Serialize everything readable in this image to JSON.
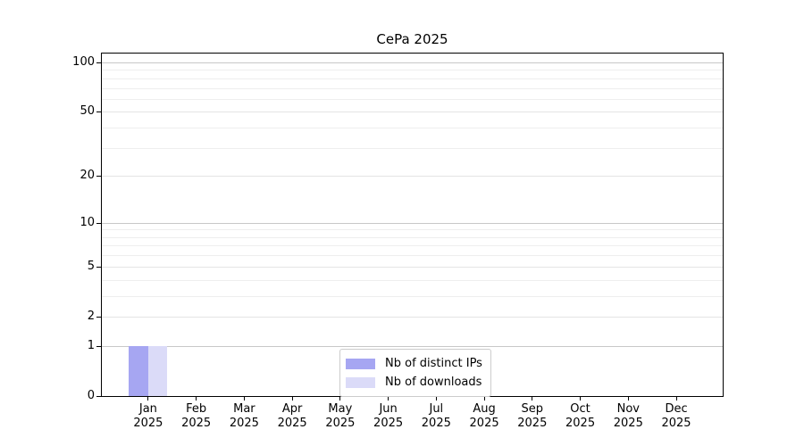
{
  "title": "CePa 2025",
  "colors": {
    "bar_distinct_ips": "#a6a6f2",
    "bar_downloads": "#dbdbf8",
    "grid_power10": "#c8c8c8",
    "grid_labeled": "#e4e4e4",
    "grid_minor": "#eeeeee",
    "spine": "#000000",
    "legend_border": "#cccccc",
    "text": "#000000",
    "background": "#ffffff"
  },
  "chart_data": {
    "type": "bar",
    "title": "CePa 2025",
    "xlabel": "",
    "ylabel": "",
    "x_year": "2025",
    "categories": [
      "Jan",
      "Feb",
      "Mar",
      "Apr",
      "May",
      "Jun",
      "Jul",
      "Aug",
      "Sep",
      "Oct",
      "Nov",
      "Dec"
    ],
    "series": [
      {
        "name": "Nb of distinct IPs",
        "color": "#a6a6f2",
        "values": [
          1,
          0,
          0,
          0,
          0,
          0,
          0,
          0,
          0,
          0,
          0,
          0
        ]
      },
      {
        "name": "Nb of downloads",
        "color": "#dbdbf8",
        "values": [
          1,
          0,
          0,
          0,
          0,
          0,
          0,
          0,
          0,
          0,
          0,
          0
        ]
      }
    ],
    "y_scale": "log1p",
    "ylim": [
      0,
      115
    ],
    "y_ticks": [
      0,
      1,
      2,
      5,
      10,
      20,
      50,
      100
    ],
    "gridlines": {
      "power10": [
        1,
        10,
        100
      ],
      "labeled": [
        2,
        5,
        20,
        50
      ],
      "minor": [
        3,
        4,
        6,
        7,
        8,
        9,
        30,
        40,
        60,
        70,
        80,
        90
      ]
    },
    "grid": true,
    "legend_position": "lower center inside"
  }
}
